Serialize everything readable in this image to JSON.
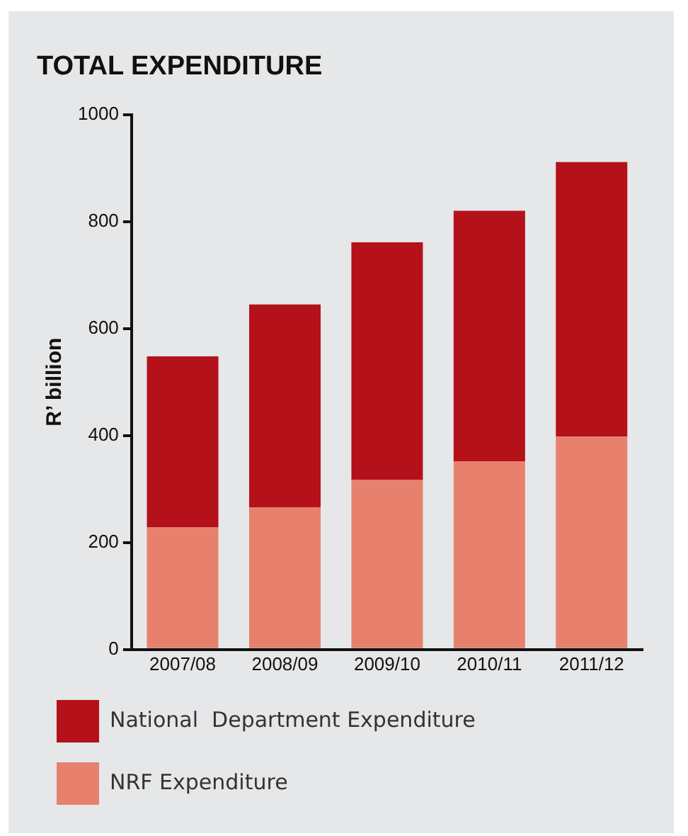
{
  "chart_data": {
    "type": "bar",
    "title": "TOTAL EXPENDITURE",
    "ylabel": "R’ billion",
    "categories": [
      "2007/08",
      "2008/09",
      "2009/10",
      "2010/11",
      "2011/12"
    ],
    "stacked": true,
    "series": [
      {
        "name": "NRF Expenditure",
        "color": "#e8806e",
        "values": [
          228,
          266,
          317,
          352,
          398
        ]
      },
      {
        "name": "National  Department Expenditure",
        "color": "#b5111b",
        "values": [
          320,
          379,
          444,
          468,
          513
        ]
      }
    ],
    "ylim": [
      0,
      1000
    ],
    "yticks": [
      0,
      200,
      400,
      600,
      800,
      1000
    ],
    "grid": false,
    "legend": "bottom"
  }
}
